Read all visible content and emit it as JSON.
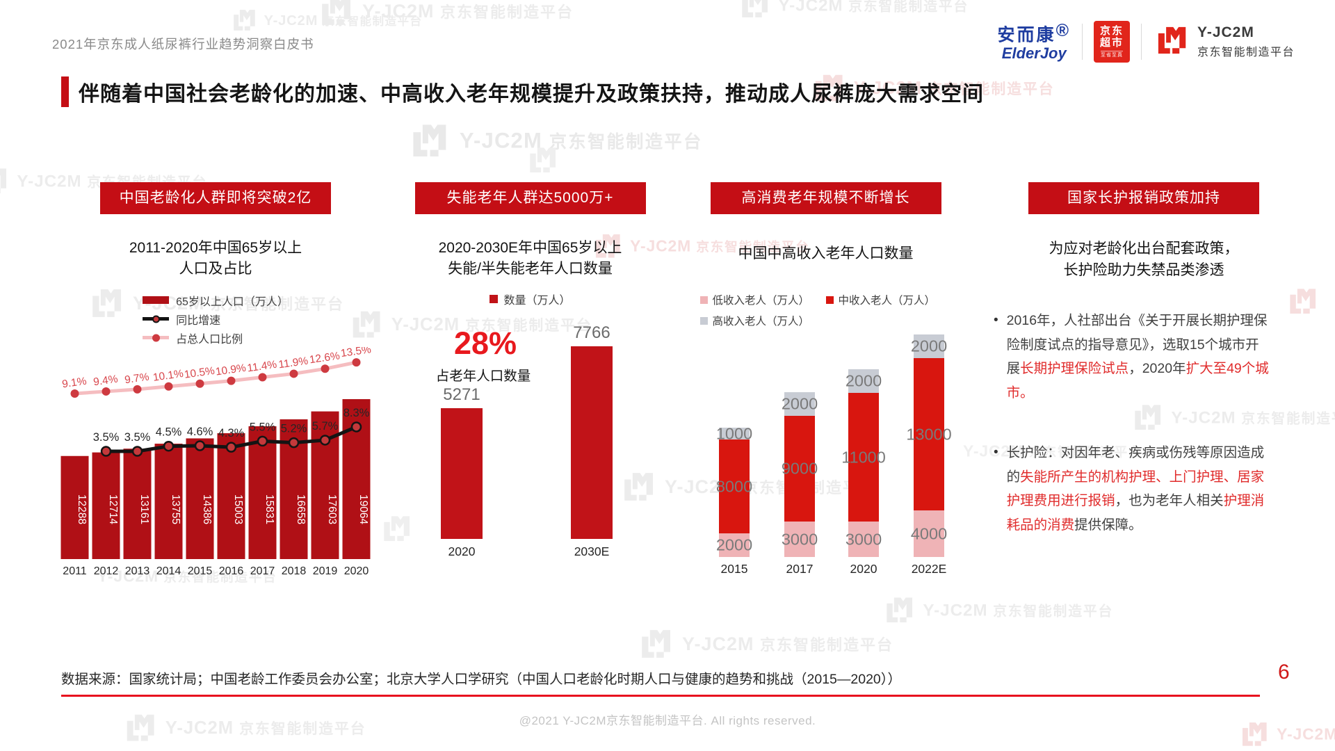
{
  "page": {
    "doc_title": "2021年京东成人纸尿裤行业趋势洞察白皮书",
    "headline": "伴随着中国社会老龄化的加速、中高收入老年规模提升及政策扶持，推动成人尿裤庞大需求空间",
    "page_number": "6",
    "source_note": "数据来源：国家统计局；中国老龄工作委员会办公室；北京大学人口学研究（中国人口老龄化时期人口与健康的趋势和挑战（2015—2020））",
    "copyright": "@2021 Y-JC2M京东智能制造平台. All rights reserved."
  },
  "brand": {
    "elderjoy_cn": "安而康",
    "elderjoy_reg": "®",
    "elderjoy_en": "ElderJoy",
    "jd_market_line1": "京东",
    "jd_market_line2": "超市",
    "jd_market_slogan": "至省至真",
    "yjc2m_name": "Y-JC2M",
    "yjc2m_sub": "京东智能制造平台",
    "accent_red": "#C40E15",
    "logo_red": "#E1251B",
    "logo_blue": "#1F3DA0"
  },
  "watermark": {
    "line1": "Y-JC2M",
    "line2": "京东智能制造平台"
  },
  "columns": {
    "col1": {
      "banner": "中国老龄化人群即将突破2亿"
    },
    "col2": {
      "banner": "失能老年人群达5000万+"
    },
    "col3": {
      "banner": "高消费老年规模不断增长"
    },
    "col4": {
      "banner": "国家长护报销政策加持",
      "subtitle_line1": "为应对老龄化出台配套政策，",
      "subtitle_line2": "长护险助力失禁品类渗透",
      "bullets": [
        [
          {
            "t": "2016年，人社部出台《关于开展长期护理保险制度试点的指导意见》，选取15个城市开展"
          },
          {
            "t": "长期护理保险试点",
            "red": true
          },
          {
            "t": "，2020年"
          },
          {
            "t": "扩大至49个城市。",
            "red": true
          }
        ],
        [
          {
            "t": "长护险：对因年老、疾病或伤残等原因造成的"
          },
          {
            "t": "失能所产生的机构护理、上门护理、居家护理费用进行报销",
            "red": true
          },
          {
            "t": "，也为老年人相关"
          },
          {
            "t": "护理消耗品的消费",
            "red": true
          },
          {
            "t": "提供保障。"
          }
        ]
      ]
    }
  },
  "chart_data": [
    {
      "type": "bar",
      "title": "2011-2020年中国65岁以上人口及占比",
      "title_lines": [
        "2011-2020年中国65岁以上",
        "人口及占比"
      ],
      "categories": [
        "2011",
        "2012",
        "2013",
        "2014",
        "2015",
        "2016",
        "2017",
        "2018",
        "2019",
        "2020"
      ],
      "series": [
        {
          "name": "65岁以上人口（万人）",
          "type": "bar",
          "color": "#B01016",
          "values": [
            12288,
            12714,
            13161,
            13755,
            14386,
            15003,
            15831,
            16658,
            17603,
            19064
          ]
        },
        {
          "name": "同比增速",
          "type": "line",
          "color": "#141414",
          "marker": "#C4393B",
          "unit": "%",
          "values": [
            null,
            3.5,
            3.5,
            4.5,
            4.6,
            4.3,
            5.5,
            5.2,
            5.7,
            8.3
          ]
        },
        {
          "name": "占总人口比例",
          "type": "line",
          "color": "#F5BDC0",
          "marker": "#CE3A40",
          "unit": "%",
          "values": [
            9.1,
            9.4,
            9.7,
            10.1,
            10.5,
            10.9,
            11.4,
            11.9,
            12.6,
            13.5
          ]
        }
      ],
      "legend_position": "top",
      "grid": false
    },
    {
      "type": "bar",
      "title": "2020-2030E年中国65岁以上失能/半失能老年人口数量",
      "title_lines": [
        "2020-2030E年中国65岁以上",
        "失能/半失能老年人口数量"
      ],
      "legend": [
        "数量（万人）"
      ],
      "categories": [
        "2020",
        "2030E"
      ],
      "values": [
        5271,
        7766
      ],
      "color": "#C11318",
      "callout": {
        "value": "28%",
        "label": "占老年人口数量"
      },
      "grid": false
    },
    {
      "type": "stacked-bar",
      "title": "中国中高收入老年人口数量",
      "categories": [
        "2015",
        "2017",
        "2020",
        "2022E"
      ],
      "series": [
        {
          "name": "低收入老人（万人）",
          "color": "#EFB3B6",
          "values": [
            2000,
            3000,
            3000,
            4000
          ]
        },
        {
          "name": "中收入老人（万人）",
          "color": "#D8160F",
          "values": [
            8000,
            9000,
            11000,
            13000
          ]
        },
        {
          "name": "高收入老人（万人）",
          "color": "#C8CCD4",
          "values": [
            1000,
            2000,
            2000,
            2000
          ]
        }
      ],
      "legend_position": "top",
      "grid": false
    }
  ]
}
